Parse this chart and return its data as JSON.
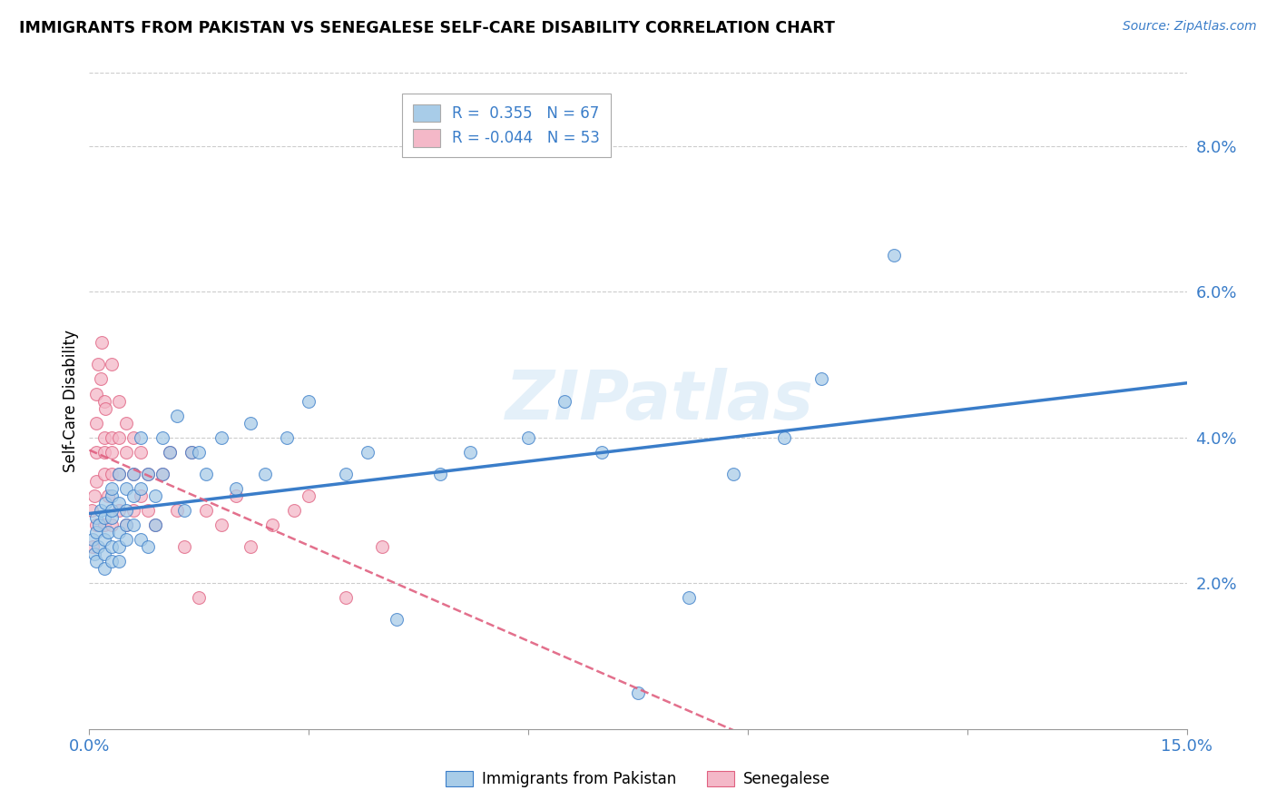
{
  "title": "IMMIGRANTS FROM PAKISTAN VS SENEGALESE SELF-CARE DISABILITY CORRELATION CHART",
  "source": "Source: ZipAtlas.com",
  "ylabel": "Self-Care Disability",
  "xlim": [
    0.0,
    0.15
  ],
  "ylim": [
    0.0,
    0.09
  ],
  "xtick_positions": [
    0.0,
    0.03,
    0.06,
    0.09,
    0.12,
    0.15
  ],
  "xticklabels": [
    "0.0%",
    "",
    "",
    "",
    "",
    "15.0%"
  ],
  "yticks_right": [
    0.02,
    0.04,
    0.06,
    0.08
  ],
  "ytick_labels_right": [
    "2.0%",
    "4.0%",
    "6.0%",
    "8.0%"
  ],
  "color_blue": "#a8cce8",
  "color_pink": "#f4b8c8",
  "line_blue": "#3a7dc9",
  "line_pink": "#e06080",
  "watermark": "ZIPatlas",
  "pakistan_x": [
    0.0005,
    0.0007,
    0.001,
    0.001,
    0.001,
    0.0012,
    0.0013,
    0.0015,
    0.002,
    0.002,
    0.002,
    0.002,
    0.0022,
    0.0025,
    0.003,
    0.003,
    0.003,
    0.003,
    0.003,
    0.003,
    0.004,
    0.004,
    0.004,
    0.004,
    0.004,
    0.005,
    0.005,
    0.005,
    0.005,
    0.006,
    0.006,
    0.006,
    0.007,
    0.007,
    0.007,
    0.008,
    0.008,
    0.009,
    0.009,
    0.01,
    0.01,
    0.011,
    0.012,
    0.013,
    0.014,
    0.015,
    0.016,
    0.018,
    0.02,
    0.022,
    0.024,
    0.027,
    0.03,
    0.035,
    0.038,
    0.042,
    0.048,
    0.052,
    0.06,
    0.065,
    0.07,
    0.075,
    0.082,
    0.088,
    0.095,
    0.1,
    0.11
  ],
  "pakistan_y": [
    0.026,
    0.024,
    0.029,
    0.027,
    0.023,
    0.025,
    0.028,
    0.03,
    0.026,
    0.024,
    0.022,
    0.029,
    0.031,
    0.027,
    0.023,
    0.025,
    0.029,
    0.032,
    0.03,
    0.033,
    0.027,
    0.025,
    0.023,
    0.031,
    0.035,
    0.028,
    0.026,
    0.03,
    0.033,
    0.035,
    0.028,
    0.032,
    0.04,
    0.033,
    0.026,
    0.035,
    0.025,
    0.032,
    0.028,
    0.04,
    0.035,
    0.038,
    0.043,
    0.03,
    0.038,
    0.038,
    0.035,
    0.04,
    0.033,
    0.042,
    0.035,
    0.04,
    0.045,
    0.035,
    0.038,
    0.015,
    0.035,
    0.038,
    0.04,
    0.045,
    0.038,
    0.005,
    0.018,
    0.035,
    0.04,
    0.048,
    0.065
  ],
  "senegal_x": [
    0.0003,
    0.0005,
    0.0007,
    0.001,
    0.001,
    0.001,
    0.001,
    0.001,
    0.0012,
    0.0015,
    0.0017,
    0.002,
    0.002,
    0.002,
    0.002,
    0.002,
    0.0022,
    0.0025,
    0.003,
    0.003,
    0.003,
    0.003,
    0.003,
    0.004,
    0.004,
    0.004,
    0.004,
    0.005,
    0.005,
    0.005,
    0.006,
    0.006,
    0.006,
    0.007,
    0.007,
    0.008,
    0.008,
    0.009,
    0.01,
    0.011,
    0.012,
    0.013,
    0.014,
    0.015,
    0.016,
    0.018,
    0.02,
    0.022,
    0.025,
    0.028,
    0.03,
    0.035,
    0.04
  ],
  "senegal_y": [
    0.03,
    0.025,
    0.032,
    0.028,
    0.034,
    0.038,
    0.042,
    0.046,
    0.05,
    0.048,
    0.053,
    0.04,
    0.035,
    0.045,
    0.028,
    0.038,
    0.044,
    0.032,
    0.04,
    0.035,
    0.05,
    0.028,
    0.038,
    0.045,
    0.03,
    0.035,
    0.04,
    0.042,
    0.038,
    0.028,
    0.035,
    0.03,
    0.04,
    0.038,
    0.032,
    0.035,
    0.03,
    0.028,
    0.035,
    0.038,
    0.03,
    0.025,
    0.038,
    0.018,
    0.03,
    0.028,
    0.032,
    0.025,
    0.028,
    0.03,
    0.032,
    0.018,
    0.025
  ]
}
